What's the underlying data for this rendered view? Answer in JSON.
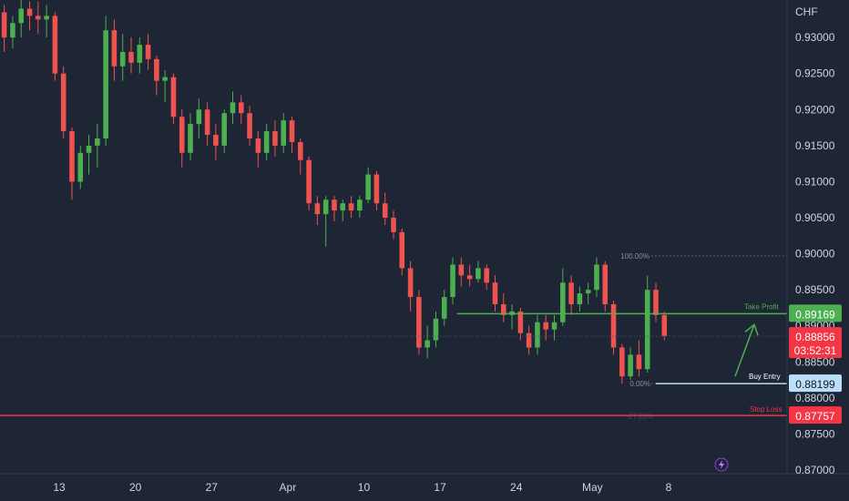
{
  "chart_data": {
    "type": "candlestick",
    "symbol_currency": "CHF",
    "colors": {
      "background": "#1e2535",
      "up": "#26a69a",
      "upBright": "#4caf50",
      "down": "#ef5350",
      "axis_text": "#d1d4dc",
      "take_profit": "#4caf50",
      "buy_entry": "#bbdefb",
      "stop_loss": "#f23645",
      "current": "#f23645"
    },
    "y_axis": {
      "range": [
        0.8695,
        0.9352
      ],
      "ticks": [
        "0.93000",
        "0.92500",
        "0.92000",
        "0.91500",
        "0.91000",
        "0.90500",
        "0.90000",
        "0.89500",
        "0.89000",
        "0.88500",
        "0.88000",
        "0.87500",
        "0.87000"
      ]
    },
    "x_axis": {
      "range": [
        0,
        93
      ],
      "ticks": [
        {
          "label": "13",
          "x": 7
        },
        {
          "label": "20",
          "x": 16
        },
        {
          "label": "27",
          "x": 25
        },
        {
          "label": "Apr",
          "x": 34
        },
        {
          "label": "10",
          "x": 43
        },
        {
          "label": "17",
          "x": 52
        },
        {
          "label": "24",
          "x": 61
        },
        {
          "label": "May",
          "x": 70
        },
        {
          "label": "8",
          "x": 79
        }
      ]
    },
    "candles": [
      [
        0.9335,
        0.9345,
        0.928,
        0.93
      ],
      [
        0.93,
        0.933,
        0.9285,
        0.932
      ],
      [
        0.932,
        0.9352,
        0.93,
        0.934
      ],
      [
        0.934,
        0.935,
        0.931,
        0.933
      ],
      [
        0.933,
        0.935,
        0.9305,
        0.9325
      ],
      [
        0.9325,
        0.9345,
        0.93,
        0.933
      ],
      [
        0.933,
        0.9335,
        0.924,
        0.925
      ],
      [
        0.925,
        0.926,
        0.916,
        0.917
      ],
      [
        0.917,
        0.9175,
        0.9075,
        0.91
      ],
      [
        0.91,
        0.915,
        0.909,
        0.914
      ],
      [
        0.914,
        0.9165,
        0.911,
        0.915
      ],
      [
        0.915,
        0.918,
        0.912,
        0.916
      ],
      [
        0.916,
        0.933,
        0.915,
        0.931
      ],
      [
        0.931,
        0.9325,
        0.924,
        0.926
      ],
      [
        0.926,
        0.9305,
        0.924,
        0.928
      ],
      [
        0.928,
        0.93,
        0.925,
        0.9265
      ],
      [
        0.9265,
        0.93,
        0.925,
        0.929
      ],
      [
        0.929,
        0.9305,
        0.9255,
        0.927
      ],
      [
        0.927,
        0.9275,
        0.922,
        0.924
      ],
      [
        0.924,
        0.9255,
        0.921,
        0.9245
      ],
      [
        0.9245,
        0.925,
        0.918,
        0.919
      ],
      [
        0.919,
        0.92,
        0.912,
        0.914
      ],
      [
        0.914,
        0.9195,
        0.913,
        0.918
      ],
      [
        0.918,
        0.9215,
        0.916,
        0.92
      ],
      [
        0.92,
        0.921,
        0.915,
        0.9165
      ],
      [
        0.9165,
        0.918,
        0.913,
        0.915
      ],
      [
        0.915,
        0.92,
        0.914,
        0.9195
      ],
      [
        0.9195,
        0.9225,
        0.918,
        0.921
      ],
      [
        0.921,
        0.922,
        0.918,
        0.9195
      ],
      [
        0.9195,
        0.9205,
        0.915,
        0.916
      ],
      [
        0.916,
        0.917,
        0.912,
        0.914
      ],
      [
        0.914,
        0.918,
        0.913,
        0.917
      ],
      [
        0.917,
        0.9185,
        0.9135,
        0.915
      ],
      [
        0.915,
        0.9195,
        0.914,
        0.9185
      ],
      [
        0.9185,
        0.919,
        0.914,
        0.9155
      ],
      [
        0.9155,
        0.916,
        0.911,
        0.913
      ],
      [
        0.913,
        0.9135,
        0.906,
        0.907
      ],
      [
        0.907,
        0.908,
        0.904,
        0.9055
      ],
      [
        0.9055,
        0.908,
        0.901,
        0.9075
      ],
      [
        0.9075,
        0.908,
        0.9045,
        0.906
      ],
      [
        0.906,
        0.9075,
        0.9045,
        0.907
      ],
      [
        0.907,
        0.908,
        0.905,
        0.906
      ],
      [
        0.906,
        0.908,
        0.905,
        0.9075
      ],
      [
        0.9075,
        0.912,
        0.907,
        0.911
      ],
      [
        0.911,
        0.9115,
        0.906,
        0.907
      ],
      [
        0.907,
        0.9085,
        0.904,
        0.905
      ],
      [
        0.905,
        0.906,
        0.902,
        0.903
      ],
      [
        0.903,
        0.9035,
        0.897,
        0.898
      ],
      [
        0.898,
        0.899,
        0.892,
        0.894
      ],
      [
        0.894,
        0.895,
        0.886,
        0.887
      ],
      [
        0.887,
        0.89,
        0.8855,
        0.888
      ],
      [
        0.888,
        0.892,
        0.887,
        0.891
      ],
      [
        0.891,
        0.895,
        0.89,
        0.894
      ],
      [
        0.894,
        0.8995,
        0.893,
        0.8985
      ],
      [
        0.8985,
        0.8995,
        0.8955,
        0.897
      ],
      [
        0.897,
        0.8985,
        0.8955,
        0.8965
      ],
      [
        0.8965,
        0.899,
        0.896,
        0.898
      ],
      [
        0.898,
        0.8985,
        0.895,
        0.896
      ],
      [
        0.896,
        0.897,
        0.892,
        0.893
      ],
      [
        0.893,
        0.8945,
        0.8905,
        0.8915
      ],
      [
        0.8915,
        0.893,
        0.8895,
        0.892
      ],
      [
        0.892,
        0.8925,
        0.888,
        0.889
      ],
      [
        0.889,
        0.89,
        0.886,
        0.887
      ],
      [
        0.887,
        0.8915,
        0.886,
        0.8905
      ],
      [
        0.8905,
        0.8915,
        0.888,
        0.8895
      ],
      [
        0.8895,
        0.8915,
        0.888,
        0.8905
      ],
      [
        0.8905,
        0.898,
        0.89,
        0.896
      ],
      [
        0.896,
        0.897,
        0.8915,
        0.893
      ],
      [
        0.893,
        0.8955,
        0.892,
        0.8945
      ],
      [
        0.8945,
        0.896,
        0.893,
        0.895
      ],
      [
        0.895,
        0.8995,
        0.894,
        0.8985
      ],
      [
        0.8985,
        0.899,
        0.892,
        0.893
      ],
      [
        0.893,
        0.8935,
        0.886,
        0.887
      ],
      [
        0.887,
        0.8875,
        0.882,
        0.883
      ],
      [
        0.883,
        0.887,
        0.8825,
        0.886
      ],
      [
        0.886,
        0.888,
        0.883,
        0.884
      ],
      [
        0.884,
        0.897,
        0.8835,
        0.895
      ],
      [
        0.895,
        0.896,
        0.8905,
        0.8915
      ],
      [
        0.8915,
        0.892,
        0.888,
        0.8886
      ]
    ],
    "levels": {
      "fib_100": {
        "label": "100.00%",
        "price": 0.8997
      },
      "fib_0": {
        "label": "0.00%",
        "price": 0.882
      },
      "fib_ext": {
        "label": "-27.20%",
        "price": 0.8775
      },
      "take_profit": {
        "label": "Take Profit",
        "price": 0.89169,
        "tag": "0.89169"
      },
      "buy_entry": {
        "label": "Buy Entry",
        "price": 0.88199,
        "tag": "0.88199"
      },
      "stop_loss": {
        "label": "Stop Loss",
        "price": 0.87757,
        "tag": "0.87757"
      },
      "current": {
        "price": 0.88856,
        "tag": "0.88856",
        "countdown": "03:52:31"
      }
    }
  }
}
